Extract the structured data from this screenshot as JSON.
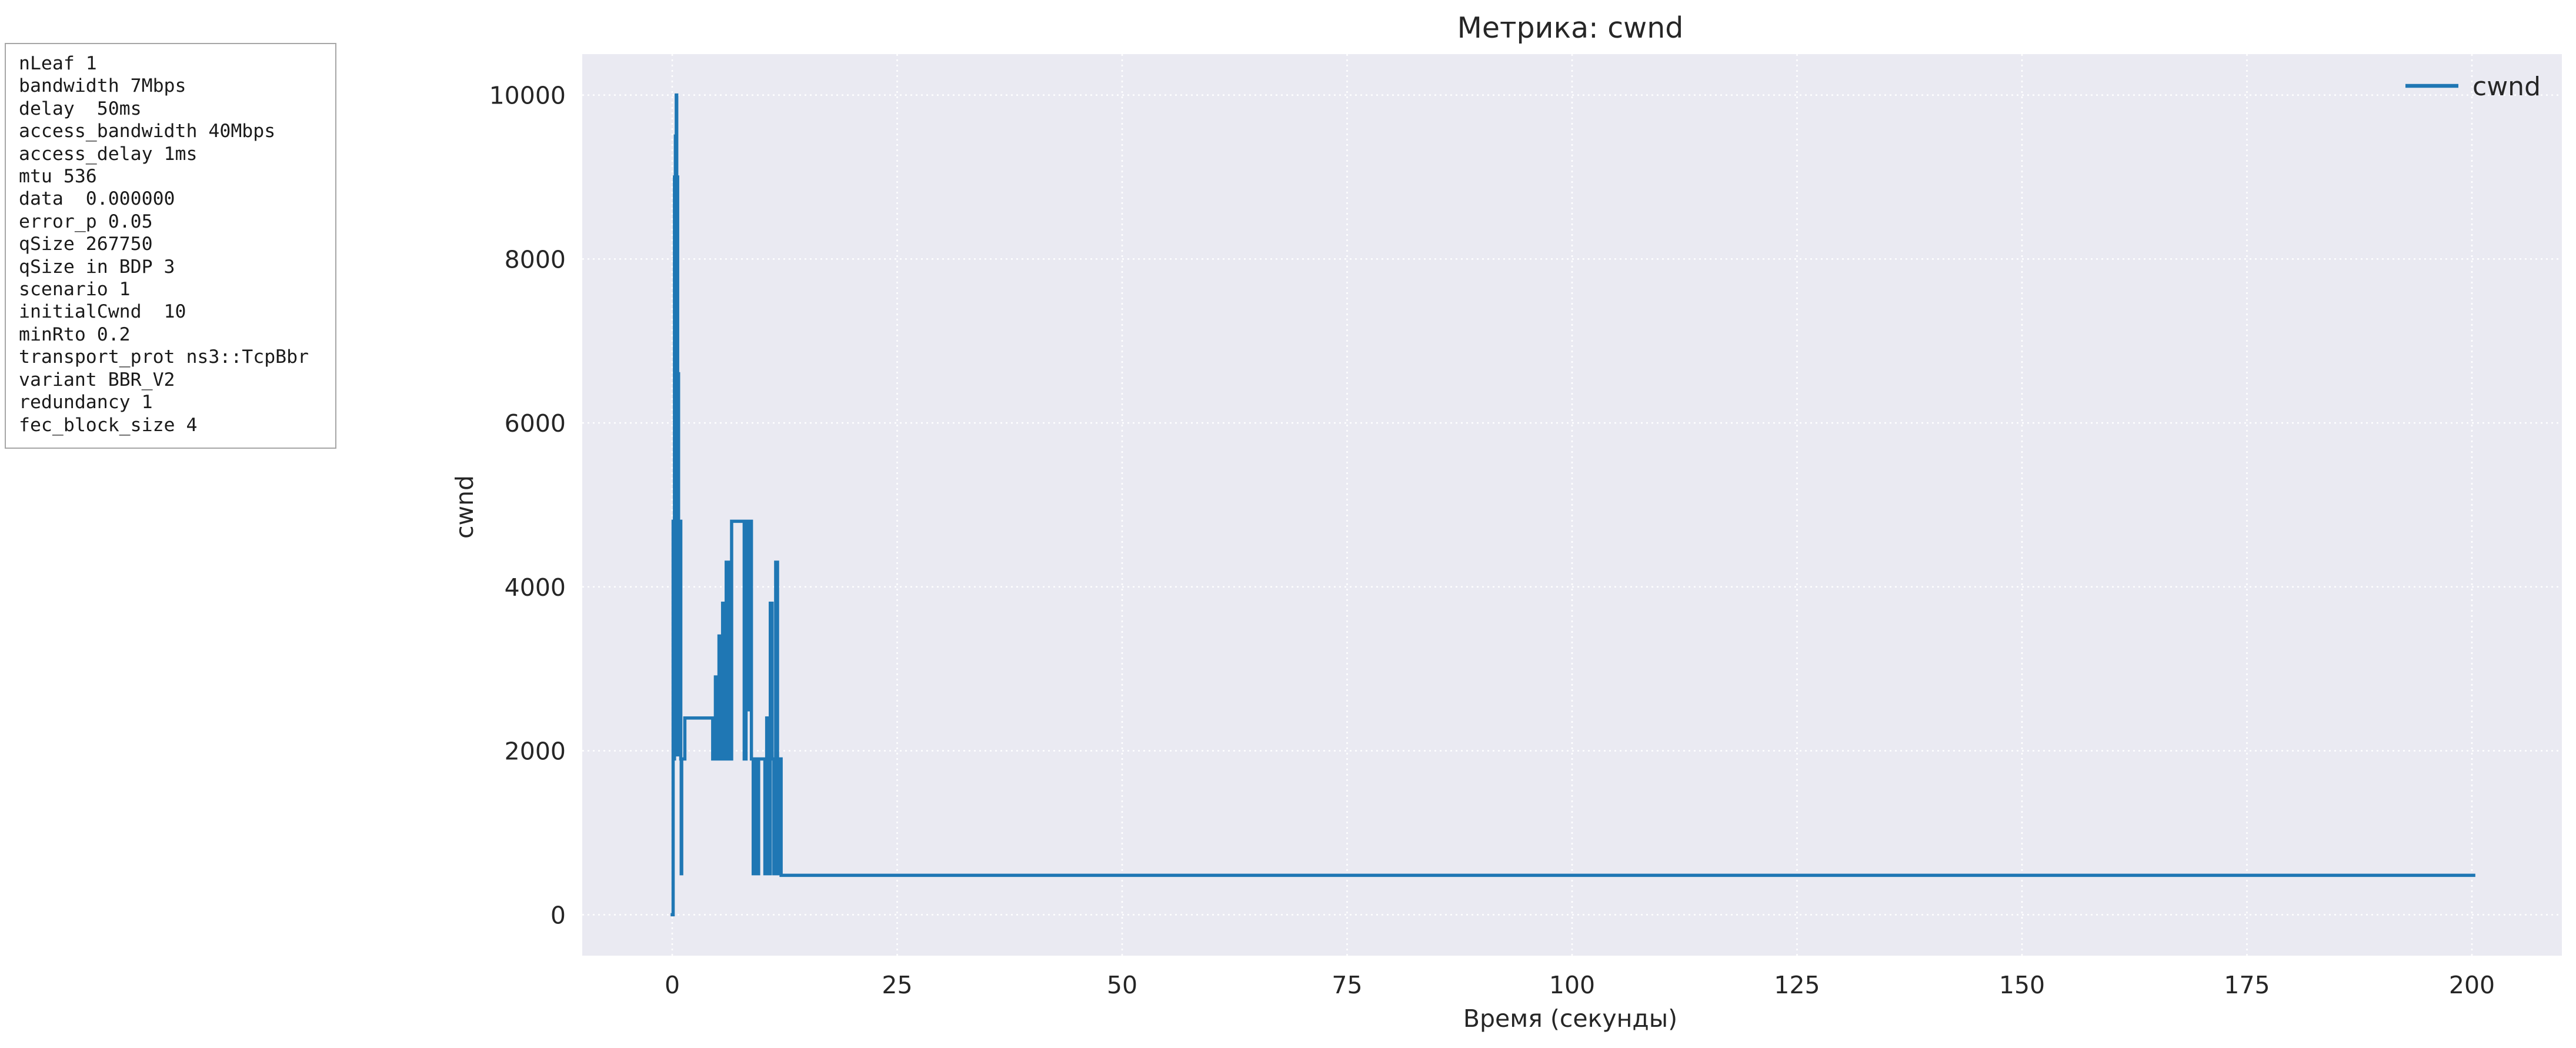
{
  "params": [
    "nLeaf 1",
    "bandwidth 7Mbps",
    "delay  50ms",
    "access_bandwidth 40Mbps",
    "access_delay 1ms",
    "mtu 536",
    "data  0.000000",
    "error_p 0.05",
    "qSize 267750",
    "qSize in BDP 3",
    "scenario 1",
    "initialCwnd  10",
    "minRto 0.2",
    "transport_prot ns3::TcpBbr",
    "variant BBR_V2",
    "redundancy 1",
    "fec_block_size 4"
  ],
  "colors": {
    "series": "#1f77b4",
    "plot_background": "#eaeaf2",
    "grid": "#ffffff"
  },
  "chart_data": {
    "type": "line",
    "title": "Метрика: cwnd",
    "xlabel": "Время (секунды)",
    "ylabel": "cwnd",
    "xlim": [
      -10,
      210
    ],
    "ylim": [
      -500,
      10500
    ],
    "xticks": [
      0,
      25,
      50,
      75,
      100,
      125,
      150,
      175,
      200
    ],
    "yticks": [
      0,
      2000,
      4000,
      6000,
      8000,
      10000
    ],
    "grid": true,
    "grid_style": "dotted",
    "legend_position": "top-right",
    "step": true,
    "series": [
      {
        "name": "cwnd",
        "x": [
          0.0,
          0.1,
          0.2,
          0.25,
          0.3,
          0.35,
          0.4,
          0.45,
          0.5,
          0.55,
          0.6,
          0.65,
          0.7,
          0.75,
          0.8,
          0.85,
          0.9,
          0.95,
          1.0,
          1.05,
          1.1,
          1.2,
          1.4,
          2.5,
          4.5,
          4.8,
          5.0,
          5.2,
          5.4,
          5.6,
          5.8,
          6.0,
          6.3,
          6.6,
          7.0,
          7.6,
          8.0,
          8.2,
          8.4,
          8.6,
          8.8,
          9.0,
          9.2,
          9.4,
          9.6,
          10.0,
          10.3,
          10.5,
          10.7,
          10.9,
          11.1,
          11.3,
          11.5,
          11.7,
          11.9,
          12.1,
          12.4,
          200.2
        ],
        "values": [
          0,
          4800,
          1900,
          9000,
          2000,
          9500,
          1950,
          10000,
          2000,
          9000,
          1950,
          6600,
          1950,
          4800,
          1950,
          1950,
          4800,
          1900,
          500,
          1900,
          1900,
          1900,
          2400,
          2400,
          1900,
          2900,
          1900,
          3400,
          1900,
          3800,
          1900,
          4300,
          1900,
          4800,
          4800,
          4800,
          1900,
          4800,
          2500,
          4800,
          1900,
          500,
          1900,
          500,
          1900,
          1900,
          500,
          2400,
          500,
          3800,
          1900,
          500,
          4300,
          500,
          1900,
          480,
          480,
          480
        ]
      }
    ]
  }
}
